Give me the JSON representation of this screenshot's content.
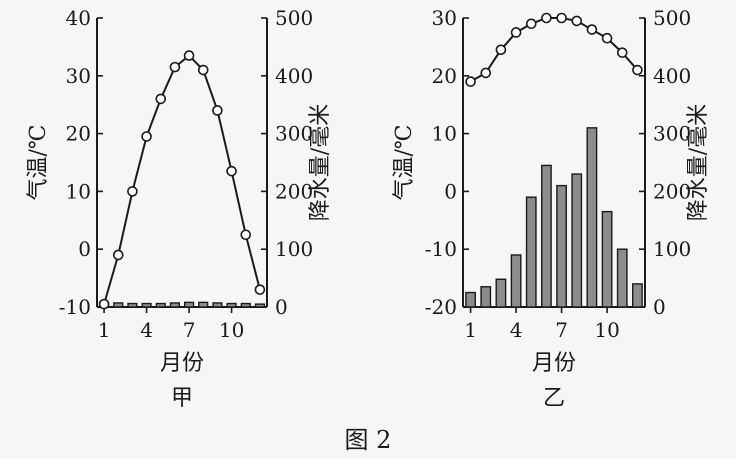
{
  "caption": "图 2",
  "chart_data": [
    {
      "type": "bar+line",
      "panel_label": "甲",
      "xlabel": "月份",
      "ylabel_left": "气温/℃",
      "ylabel_right": "降水量/毫米",
      "x_ticks": [
        1,
        4,
        7,
        10
      ],
      "y_left_ticks": [
        -10,
        0,
        10,
        20,
        30,
        40
      ],
      "y_right_ticks": [
        0,
        100,
        200,
        300,
        400,
        500
      ],
      "ylim_left": [
        -10,
        40
      ],
      "ylim_right": [
        0,
        500
      ],
      "months": [
        1,
        2,
        3,
        4,
        5,
        6,
        7,
        8,
        9,
        10,
        11,
        12
      ],
      "temperature": [
        -9.5,
        -1,
        10,
        19.5,
        26,
        31.5,
        33.5,
        31,
        24,
        13.5,
        2.5,
        -7
      ],
      "precipitation": [
        8,
        7,
        6,
        6,
        6,
        7,
        8,
        8,
        7,
        6,
        6,
        5
      ]
    },
    {
      "type": "bar+line",
      "panel_label": "乙",
      "xlabel": "月份",
      "ylabel_left": "气温/℃",
      "ylabel_right": "降水量/毫米",
      "x_ticks": [
        1,
        4,
        7,
        10
      ],
      "y_left_ticks": [
        -20,
        -10,
        0,
        10,
        20,
        30
      ],
      "y_right_ticks": [
        0,
        100,
        200,
        300,
        400,
        500
      ],
      "ylim_left": [
        -20,
        30
      ],
      "ylim_right": [
        0,
        500
      ],
      "months": [
        1,
        2,
        3,
        4,
        5,
        6,
        7,
        8,
        9,
        10,
        11,
        12
      ],
      "temperature": [
        19,
        20.5,
        24.5,
        27.5,
        29,
        30,
        30,
        29.5,
        28,
        26.5,
        24,
        21
      ],
      "precipitation": [
        25,
        35,
        48,
        90,
        190,
        245,
        210,
        230,
        310,
        165,
        100,
        40
      ]
    }
  ]
}
